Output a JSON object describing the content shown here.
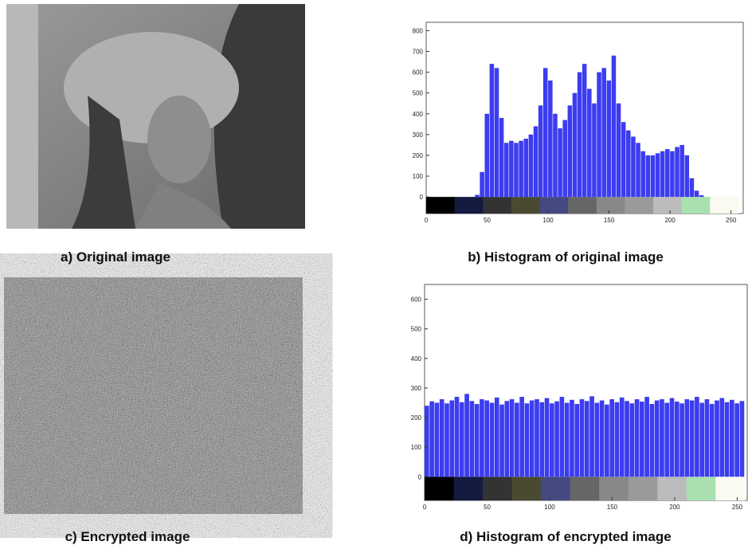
{
  "panels": [
    {
      "caption": "a) Original image"
    },
    {
      "caption": "b) Histogram of original image"
    },
    {
      "caption": "c) Encrypted image"
    },
    {
      "caption": "d) Histogram of encrypted image"
    }
  ],
  "chart_data": [
    {
      "type": "histogram",
      "color": "#3c3cf0",
      "bins": [
        0,
        4,
        8,
        12,
        16,
        20,
        24,
        28,
        32,
        36,
        40,
        44,
        48,
        52,
        56,
        60,
        64,
        68,
        72,
        76,
        80,
        84,
        88,
        92,
        96,
        100,
        104,
        108,
        112,
        116,
        120,
        124,
        128,
        132,
        136,
        140,
        144,
        148,
        152,
        156,
        160,
        164,
        168,
        172,
        176,
        180,
        184,
        188,
        192,
        196,
        200,
        204,
        208,
        212,
        216,
        220,
        224,
        228,
        232,
        236,
        240,
        244,
        248,
        252,
        256
      ],
      "values": [
        0,
        0,
        0,
        0,
        0,
        0,
        0,
        0,
        0,
        0,
        10,
        120,
        400,
        640,
        620,
        380,
        260,
        270,
        260,
        270,
        280,
        300,
        340,
        440,
        620,
        560,
        400,
        330,
        370,
        440,
        500,
        600,
        640,
        520,
        450,
        600,
        620,
        560,
        680,
        450,
        360,
        320,
        290,
        260,
        220,
        200,
        200,
        210,
        220,
        230,
        220,
        240,
        250,
        200,
        90,
        30,
        8,
        0,
        0,
        0,
        0,
        0,
        0,
        0,
        0
      ],
      "xlim": [
        0,
        260
      ],
      "ylim": [
        -80,
        840
      ],
      "xticks": [
        0,
        50,
        100,
        150,
        200,
        250
      ],
      "yticks": [
        0,
        100,
        200,
        300,
        400,
        500,
        600,
        700,
        800
      ]
    },
    {
      "type": "histogram",
      "color": "#3c3cf0",
      "bins": [
        0,
        4,
        8,
        12,
        16,
        20,
        24,
        28,
        32,
        36,
        40,
        44,
        48,
        52,
        56,
        60,
        64,
        68,
        72,
        76,
        80,
        84,
        88,
        92,
        96,
        100,
        104,
        108,
        112,
        116,
        120,
        124,
        128,
        132,
        136,
        140,
        144,
        148,
        152,
        156,
        160,
        164,
        168,
        172,
        176,
        180,
        184,
        188,
        192,
        196,
        200,
        204,
        208,
        212,
        216,
        220,
        224,
        228,
        232,
        236,
        240,
        244,
        248,
        252,
        256
      ],
      "values": [
        240,
        255,
        250,
        262,
        248,
        258,
        270,
        252,
        280,
        256,
        246,
        262,
        258,
        250,
        268,
        244,
        256,
        262,
        250,
        270,
        248,
        258,
        262,
        252,
        266,
        248,
        255,
        270,
        250,
        260,
        246,
        262,
        256,
        272,
        250,
        258,
        244,
        262,
        252,
        268,
        256,
        248,
        262,
        254,
        270,
        246,
        258,
        262,
        250,
        266,
        254,
        248,
        262,
        258,
        270,
        250,
        262,
        246,
        258,
        266,
        252,
        260,
        248,
        256,
        240
      ],
      "xlim": [
        0,
        258
      ],
      "ylim": [
        -80,
        650
      ],
      "xticks": [
        0,
        50,
        100,
        150,
        200,
        250
      ],
      "yticks": [
        0,
        100,
        200,
        300,
        400,
        500,
        600
      ]
    }
  ]
}
